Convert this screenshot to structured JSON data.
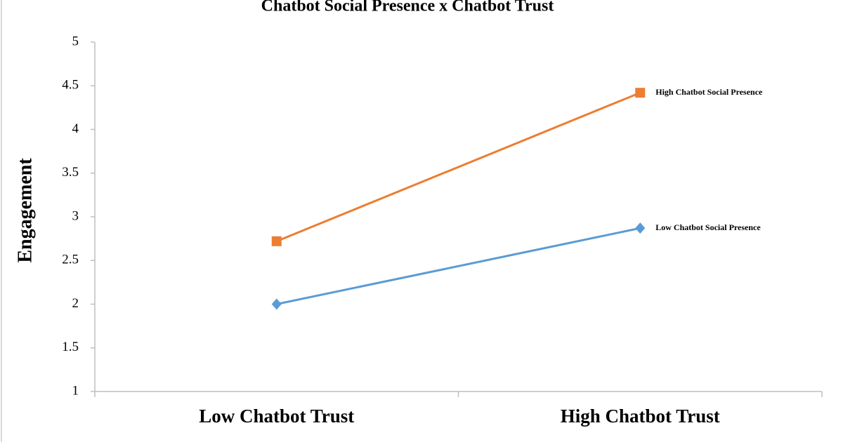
{
  "chart_data": {
    "type": "line",
    "title": "Chatbot Social Presence x Chatbot Trust",
    "y_label": "Engagement",
    "categories": [
      "Low Chatbot Trust",
      "High Chatbot Trust"
    ],
    "series": [
      {
        "name": "High Chatbot Social Presence",
        "color": "#ed7d31",
        "marker": "square",
        "values": [
          2.72,
          4.42
        ]
      },
      {
        "name": "Low Chatbot Social Presence",
        "color": "#5b9bd5",
        "marker": "diamond",
        "values": [
          2.0,
          2.87
        ]
      }
    ],
    "ylim": [
      1,
      5
    ],
    "yticks": [
      1,
      1.5,
      2,
      2.5,
      3,
      3.5,
      4,
      4.5,
      5
    ],
    "grid": false
  }
}
